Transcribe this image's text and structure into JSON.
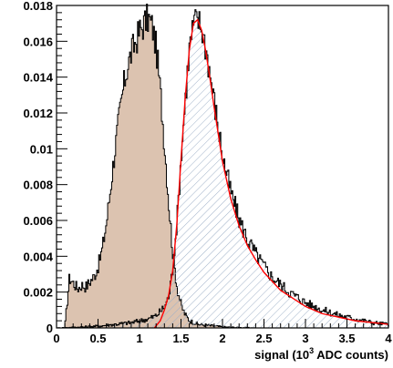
{
  "chart_data": {
    "type": "line",
    "title": "",
    "xlabel": "signal (10",
    "xlabel_sup": "3",
    "xlabel_tail": " ADC counts)",
    "ylabel": "",
    "xlim": [
      0,
      4
    ],
    "ylim": [
      0,
      0.018
    ],
    "grid": false,
    "legend": "none",
    "x_ticks": [
      {
        "v": 0,
        "label": "0"
      },
      {
        "v": 0.5,
        "label": "0.5"
      },
      {
        "v": 1,
        "label": "1"
      },
      {
        "v": 1.5,
        "label": "1.5"
      },
      {
        "v": 2,
        "label": "2"
      },
      {
        "v": 2.5,
        "label": "2.5"
      },
      {
        "v": 3,
        "label": "3"
      },
      {
        "v": 3.5,
        "label": "3.5"
      },
      {
        "v": 4,
        "label": "4"
      }
    ],
    "y_ticks": [
      {
        "v": 0,
        "label": "0"
      },
      {
        "v": 0.002,
        "label": "0.002"
      },
      {
        "v": 0.004,
        "label": "0.004"
      },
      {
        "v": 0.006,
        "label": "0.006"
      },
      {
        "v": 0.008,
        "label": "0.008"
      },
      {
        "v": 0.01,
        "label": "0.01"
      },
      {
        "v": 0.012,
        "label": "0.012"
      },
      {
        "v": 0.014,
        "label": "0.014"
      },
      {
        "v": 0.016,
        "label": "0.016"
      },
      {
        "v": 0.018,
        "label": "0.018"
      }
    ],
    "series": [
      {
        "style": "filled-brown",
        "color": "#000000",
        "fill": "#dcc3b0",
        "x": [
          0.1,
          0.15,
          0.2,
          0.25,
          0.3,
          0.35,
          0.4,
          0.45,
          0.5,
          0.55,
          0.6,
          0.65,
          0.7,
          0.75,
          0.8,
          0.85,
          0.9,
          0.95,
          1.0,
          1.05,
          1.1,
          1.15,
          1.2,
          1.25,
          1.3,
          1.35,
          1.4,
          1.45,
          1.5,
          1.55,
          1.6,
          1.65,
          1.7,
          1.8,
          1.9,
          2.0,
          2.2,
          2.4
        ],
        "y": [
          0.0003,
          0.0028,
          0.0025,
          0.0022,
          0.0024,
          0.0023,
          0.0026,
          0.0029,
          0.0035,
          0.0045,
          0.006,
          0.008,
          0.01,
          0.0118,
          0.0134,
          0.0146,
          0.0154,
          0.016,
          0.0166,
          0.017,
          0.0173,
          0.0168,
          0.0155,
          0.013,
          0.01,
          0.0068,
          0.004,
          0.0022,
          0.0012,
          0.0007,
          0.0004,
          0.0003,
          0.0002,
          0.00015,
          0.0001,
          5e-05,
          2e-05,
          0.0
        ]
      },
      {
        "style": "hatched-blue",
        "color": "#000000",
        "fill": "#9fb1c8",
        "x": [
          0.0,
          0.3,
          0.5,
          0.7,
          0.9,
          1.0,
          1.1,
          1.2,
          1.3,
          1.35,
          1.4,
          1.45,
          1.5,
          1.55,
          1.6,
          1.65,
          1.7,
          1.75,
          1.8,
          1.85,
          1.9,
          1.95,
          2.0,
          2.1,
          2.2,
          2.3,
          2.4,
          2.5,
          2.6,
          2.7,
          2.8,
          3.0,
          3.2,
          3.4,
          3.6,
          3.8,
          4.0
        ],
        "y": [
          0.0,
          5e-05,
          0.0001,
          0.0002,
          0.0003,
          0.0004,
          0.0005,
          0.0007,
          0.0012,
          0.0018,
          0.0035,
          0.0062,
          0.0098,
          0.013,
          0.0158,
          0.017,
          0.0172,
          0.0166,
          0.0155,
          0.014,
          0.0125,
          0.011,
          0.0095,
          0.0075,
          0.006,
          0.0049,
          0.0041,
          0.0034,
          0.0028,
          0.0024,
          0.002,
          0.0014,
          0.001,
          0.0007,
          0.0005,
          0.0003,
          0.0002
        ]
      },
      {
        "style": "fit-red",
        "color": "#ff0000",
        "x": [
          1.18,
          1.25,
          1.3,
          1.35,
          1.4,
          1.45,
          1.5,
          1.55,
          1.6,
          1.65,
          1.7,
          1.75,
          1.8,
          1.85,
          1.9,
          1.95,
          2.0,
          2.1,
          2.2,
          2.3,
          2.4,
          2.5,
          2.6,
          2.7,
          2.8,
          3.0,
          3.2,
          3.4,
          3.6,
          3.8,
          4.0
        ],
        "y": [
          0.0,
          0.0004,
          0.001,
          0.0018,
          0.0032,
          0.0058,
          0.0094,
          0.0128,
          0.0155,
          0.017,
          0.0172,
          0.0166,
          0.0154,
          0.0139,
          0.0123,
          0.0108,
          0.0093,
          0.0072,
          0.0057,
          0.0046,
          0.0038,
          0.0031,
          0.0026,
          0.0021,
          0.0018,
          0.0012,
          0.0008,
          0.0006,
          0.0004,
          0.0003,
          0.0002
        ]
      }
    ]
  }
}
